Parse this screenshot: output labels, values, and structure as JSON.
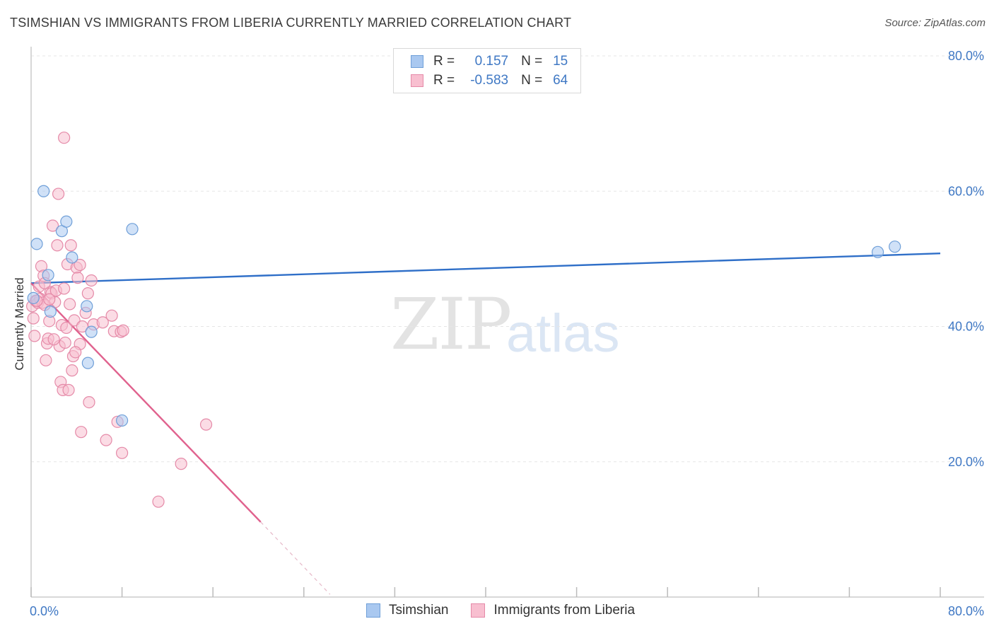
{
  "header": {
    "title": "TSIMSHIAN VS IMMIGRANTS FROM LIBERIA CURRENTLY MARRIED CORRELATION CHART",
    "source": "Source: ZipAtlas.com"
  },
  "watermark": {
    "zip": "ZIP",
    "atlas": "atlas"
  },
  "legend": {
    "rows": [
      {
        "r_label": "R =",
        "r_value": "0.157",
        "n_label": "N =",
        "n_value": "15",
        "color": "#a9c8f0",
        "border": "#6f9fd8"
      },
      {
        "r_label": "R =",
        "r_value": "-0.583",
        "n_label": "N =",
        "n_value": "64",
        "color": "#f8bfd0",
        "border": "#e58aa8"
      }
    ]
  },
  "bottom_legend": [
    {
      "label": "Tsimshian",
      "color": "#a9c8f0",
      "border": "#6f9fd8"
    },
    {
      "label": "Immigrants from Liberia",
      "color": "#f8bfd0",
      "border": "#e58aa8"
    }
  ],
  "chart_data": {
    "type": "scatter",
    "title": "TSIMSHIAN VS IMMIGRANTS FROM LIBERIA CURRENTLY MARRIED CORRELATION CHART",
    "xlabel": "",
    "ylabel": "Currently Married",
    "xlim": [
      0,
      80
    ],
    "ylim": [
      0,
      80
    ],
    "x_tick_labels": [
      "0.0%",
      "80.0%"
    ],
    "y_ticks": [
      20,
      40,
      60,
      80
    ],
    "y_tick_labels": [
      "20.0%",
      "40.0%",
      "60.0%",
      "80.0%"
    ],
    "grid": true,
    "legend_position": "top-center",
    "series": [
      {
        "name": "Tsimshian",
        "color": "#a9c8f0",
        "stroke": "#6f9fd8",
        "trend_color": "#2f6fc8",
        "points": [
          [
            0.2,
            44.2
          ],
          [
            0.5,
            52.2
          ],
          [
            1.1,
            60.0
          ],
          [
            1.5,
            47.6
          ],
          [
            1.7,
            42.2
          ],
          [
            2.7,
            54.1
          ],
          [
            3.1,
            55.5
          ],
          [
            3.6,
            50.2
          ],
          [
            4.9,
            43.0
          ],
          [
            5.0,
            34.6
          ],
          [
            5.3,
            39.2
          ],
          [
            8.0,
            26.1
          ],
          [
            8.9,
            54.4
          ],
          [
            74.5,
            51.0
          ],
          [
            76.0,
            51.8
          ]
        ],
        "trend": [
          [
            0,
            46.4
          ],
          [
            80,
            50.8
          ]
        ]
      },
      {
        "name": "Immigrants from Liberia",
        "color": "#f8bfd0",
        "stroke": "#e58aa8",
        "trend_color": "#e0628e",
        "points": [
          [
            0.1,
            43.0
          ],
          [
            0.2,
            41.2
          ],
          [
            0.3,
            38.6
          ],
          [
            0.4,
            43.8
          ],
          [
            0.6,
            43.5
          ],
          [
            0.7,
            45.9
          ],
          [
            0.8,
            44.1
          ],
          [
            0.9,
            48.9
          ],
          [
            1.0,
            43.5
          ],
          [
            1.1,
            47.5
          ],
          [
            1.2,
            43.2
          ],
          [
            1.3,
            35.0
          ],
          [
            1.4,
            37.5
          ],
          [
            1.5,
            38.2
          ],
          [
            1.6,
            40.8
          ],
          [
            1.7,
            45.1
          ],
          [
            1.8,
            44.9
          ],
          [
            1.9,
            54.9
          ],
          [
            2.1,
            43.6
          ],
          [
            2.2,
            45.3
          ],
          [
            2.3,
            52.0
          ],
          [
            2.4,
            59.6
          ],
          [
            2.5,
            37.1
          ],
          [
            2.6,
            31.8
          ],
          [
            2.7,
            40.2
          ],
          [
            2.8,
            30.6
          ],
          [
            2.9,
            45.6
          ],
          [
            3.0,
            37.6
          ],
          [
            3.1,
            39.8
          ],
          [
            3.2,
            49.2
          ],
          [
            3.3,
            30.6
          ],
          [
            3.4,
            43.3
          ],
          [
            3.5,
            52.0
          ],
          [
            3.6,
            33.5
          ],
          [
            3.7,
            35.6
          ],
          [
            3.8,
            40.9
          ],
          [
            4.0,
            48.7
          ],
          [
            4.1,
            47.2
          ],
          [
            4.3,
            49.1
          ],
          [
            4.5,
            40.0
          ],
          [
            2.9,
            67.9
          ],
          [
            4.3,
            37.4
          ],
          [
            4.4,
            24.4
          ],
          [
            4.8,
            42.0
          ],
          [
            5.0,
            44.9
          ],
          [
            5.1,
            28.8
          ],
          [
            5.3,
            46.8
          ],
          [
            5.5,
            40.3
          ],
          [
            6.3,
            40.6
          ],
          [
            6.6,
            23.2
          ],
          [
            7.1,
            41.6
          ],
          [
            7.3,
            39.3
          ],
          [
            7.6,
            25.9
          ],
          [
            7.9,
            39.2
          ],
          [
            8.0,
            21.3
          ],
          [
            8.1,
            39.4
          ],
          [
            11.2,
            14.1
          ],
          [
            13.2,
            19.7
          ],
          [
            15.4,
            25.5
          ],
          [
            1.6,
            44.0
          ],
          [
            0.5,
            43.8
          ],
          [
            2.0,
            38.1
          ],
          [
            1.2,
            46.4
          ],
          [
            3.9,
            36.2
          ]
        ],
        "trend": [
          [
            0,
            46.4
          ],
          [
            20.2,
            11.1
          ]
        ],
        "trend_dashed": [
          [
            20.2,
            11.1
          ],
          [
            26.3,
            0.4
          ]
        ]
      }
    ]
  }
}
